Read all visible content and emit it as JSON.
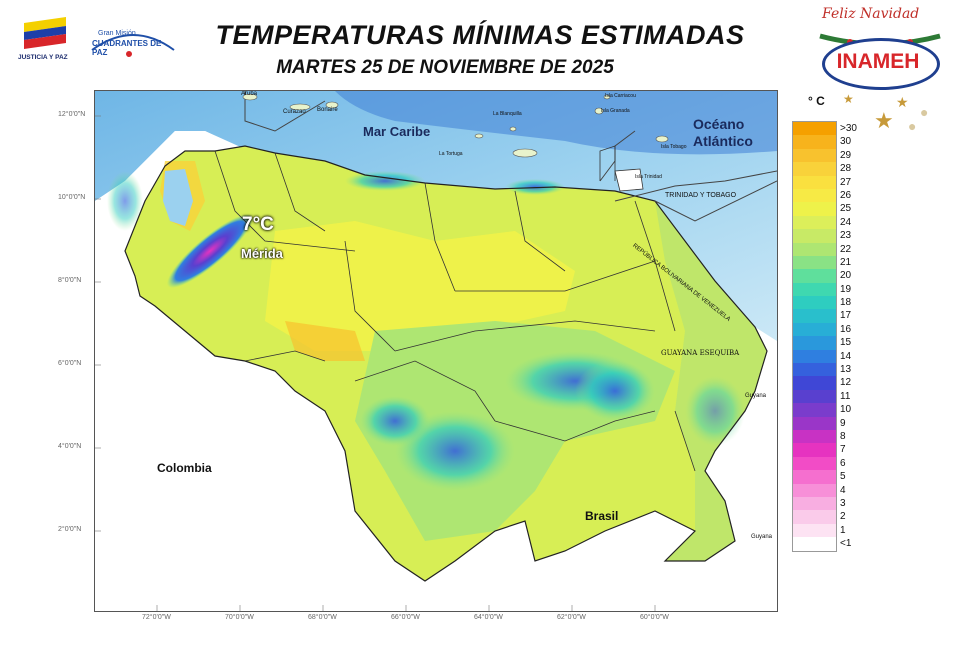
{
  "title": "TEMPERATURAS MÍNIMAS ESTIMADAS",
  "subtitle": "MARTES 25 DE NOVIEMBRE  DE 2025",
  "logos": {
    "left_caption": "JUSTICIA Y PAZ",
    "mision_line1": "Gran Misión",
    "mision_line2": "CUADRANTES DE PAZ",
    "feliz": "Feliz Navidad",
    "inameh": "INAMEH"
  },
  "map": {
    "labels": {
      "mar_caribe": "Mar Caribe",
      "oceano": "Océano",
      "atlantico": "Atlántico",
      "colombia": "Colombia",
      "brasil": "Brasil",
      "merida": "Mérida",
      "min_temp": "7°C",
      "trinidad_tobago": "TRINIDAD Y TOBAGO",
      "guayana_esequiba": "GUAYANA ESEQUIBA",
      "republica": "REPÚBLICA BOLIVARIANA DE VENEZUELA",
      "aruba": "Aruba",
      "curazao": "Curazao",
      "bonaire": "Bonaire",
      "la_tortuga": "La Tortuga",
      "la_blanquilla": "La Blanquilla",
      "carriacou": "Isla Carriacou",
      "granada": "Isla Granada",
      "tobago": "Isla Tobago",
      "trinidad": "Isla Trinidad",
      "guyana_1": "Guyana",
      "guyana_2": "Guyana"
    },
    "lat_ticks": [
      "12°0'0\"N",
      "10°0'0\"N",
      "8°0'0\"N",
      "6°0'0\"N",
      "4°0'0\"N",
      "2°0'0\"N"
    ],
    "lon_ticks": [
      "72°0'0\"W",
      "70°0'0\"W",
      "68°0'0\"W",
      "66°0'0\"W",
      "64°0'0\"W",
      "62°0'0\"W",
      "60°0'0\"W"
    ]
  },
  "legend": {
    "unit": "° C",
    "items": [
      {
        "label": ">30",
        "color": "#f5a000"
      },
      {
        "label": "30",
        "color": "#f7b31c"
      },
      {
        "label": "29",
        "color": "#f8c22e"
      },
      {
        "label": "28",
        "color": "#f9d23a"
      },
      {
        "label": "27",
        "color": "#fae03f"
      },
      {
        "label": "26",
        "color": "#f7ea45"
      },
      {
        "label": "25",
        "color": "#eef24a"
      },
      {
        "label": "24",
        "color": "#dcef5a"
      },
      {
        "label": "23",
        "color": "#c8ea66"
      },
      {
        "label": "22",
        "color": "#aee672"
      },
      {
        "label": "21",
        "color": "#8ae285"
      },
      {
        "label": "20",
        "color": "#5fdf9c"
      },
      {
        "label": "19",
        "color": "#3fd8b0"
      },
      {
        "label": "18",
        "color": "#2ecdc0"
      },
      {
        "label": "17",
        "color": "#29bfcc"
      },
      {
        "label": "16",
        "color": "#28aed6"
      },
      {
        "label": "15",
        "color": "#2a98dc"
      },
      {
        "label": "14",
        "color": "#2f7fe0"
      },
      {
        "label": "13",
        "color": "#3561dd"
      },
      {
        "label": "12",
        "color": "#3f47d6"
      },
      {
        "label": "11",
        "color": "#5940cf"
      },
      {
        "label": "10",
        "color": "#7a3ccc"
      },
      {
        "label": "9",
        "color": "#9a36c8"
      },
      {
        "label": "8",
        "color": "#c832c4"
      },
      {
        "label": "7",
        "color": "#e633c0"
      },
      {
        "label": "6",
        "color": "#f24cc6"
      },
      {
        "label": "5",
        "color": "#f56fcf"
      },
      {
        "label": "4",
        "color": "#f78fd8"
      },
      {
        "label": "3",
        "color": "#f8aee1"
      },
      {
        "label": "2",
        "color": "#facbea"
      },
      {
        "label": "1",
        "color": "#fde3f3"
      },
      {
        "label": "<1",
        "color": "#ffffff"
      }
    ]
  }
}
